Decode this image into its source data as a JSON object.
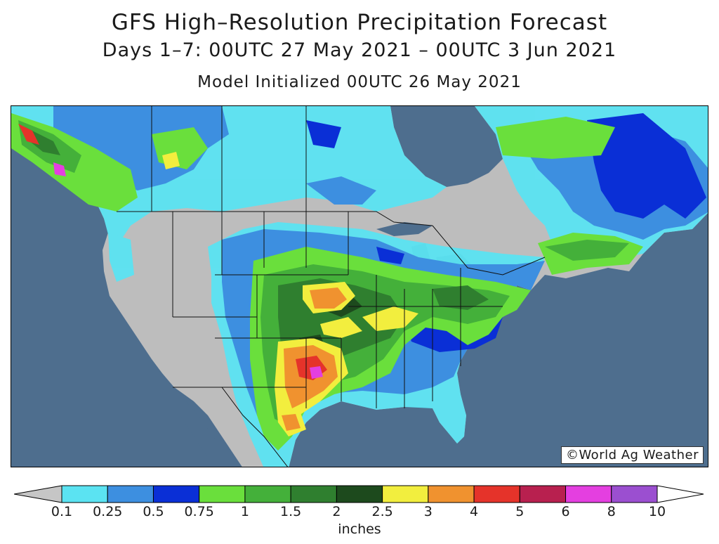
{
  "title": "GFS High–Resolution Precipitation Forecast",
  "subtitle": "Days 1–7: 00UTC 27 May 2021 – 00UTC 3 Jun 2021",
  "init_line": "Model Initialized 00UTC 26 May 2021",
  "credit": "©World Ag Weather",
  "legend": {
    "units": "inches",
    "ticks": [
      "0.1",
      "0.25",
      "0.5",
      "0.75",
      "1",
      "1.5",
      "2",
      "2.5",
      "3",
      "4",
      "5",
      "6",
      "8",
      "10"
    ],
    "colors": [
      "#c6c6c6",
      "#5be3f2",
      "#3d8fe0",
      "#0a2fd6",
      "#6adf3c",
      "#44b03a",
      "#2f7f2f",
      "#1d4a1d",
      "#f2ee3e",
      "#f0922f",
      "#e5332a",
      "#b8204f",
      "#e43fe0",
      "#9b4fd0"
    ]
  },
  "map": {
    "ocean_color": "#4e6e8e",
    "region": "North America (United States, southern Canada, northern Mexico)"
  }
}
